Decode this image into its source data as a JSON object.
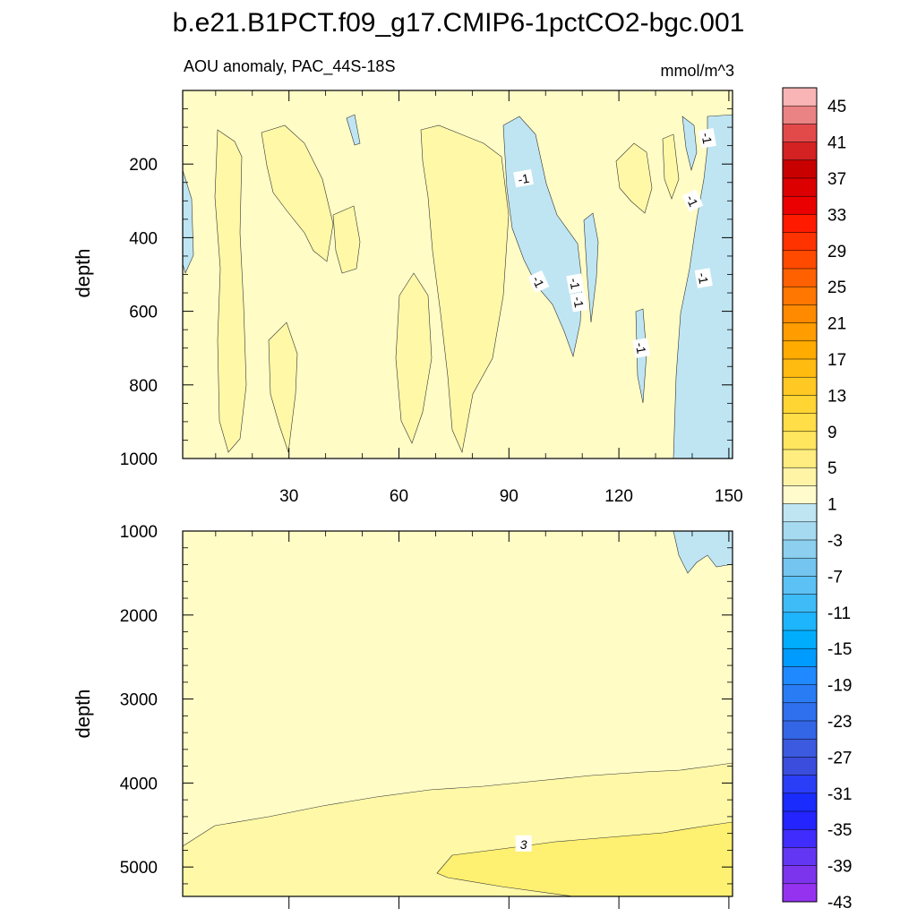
{
  "title": "b.e21.B1PCT.f09_g17.CMIP6-1pctCO2-bgc.001",
  "subtitle_left": "AOU anomaly, PAC_44S-18S",
  "subtitle_right": "mmol/m^3",
  "chart_data": [
    {
      "type": "heatmap",
      "panel": "upper",
      "ylabel": "depth",
      "xlim": [
        1,
        151
      ],
      "ylim": [
        1000,
        0
      ],
      "xticks": [
        30,
        60,
        90,
        120,
        150
      ],
      "xtick_labels": [
        "30",
        "60",
        "90",
        "120",
        "150"
      ],
      "yticks": [
        200,
        400,
        600,
        800,
        1000
      ],
      "ytick_labels": [
        "200",
        "400",
        "600",
        "800",
        "1000"
      ],
      "contour_labels": [
        "-1",
        "-1",
        "-1",
        "-1",
        "-1",
        "-1",
        "-1",
        "-1",
        "-1"
      ],
      "regions": [
        {
          "level": "1-3",
          "x_range": [
            14,
            18
          ],
          "depth_range": [
            100,
            950
          ]
        },
        {
          "level": "1-3",
          "x_range": [
            26,
            42
          ],
          "depth_range": [
            100,
            480
          ]
        },
        {
          "level": "1-3",
          "x_range": [
            60,
            66
          ],
          "depth_range": [
            550,
            1000
          ]
        },
        {
          "level": "1-3",
          "x_range": [
            69,
            92
          ],
          "depth_range": [
            80,
            1000
          ]
        },
        {
          "level": "-3 to -1",
          "x_range": [
            89,
            112
          ],
          "depth_range": [
            80,
            700
          ]
        },
        {
          "level": "-3 to -1",
          "x_range": [
            134,
            151
          ],
          "depth_range": [
            80,
            1000
          ]
        },
        {
          "level": "-3 to -1",
          "x_range": [
            1,
            4
          ],
          "depth_range": [
            230,
            430
          ]
        }
      ]
    },
    {
      "type": "heatmap",
      "panel": "lower",
      "ylabel": "depth",
      "xlim": [
        1,
        151
      ],
      "ylim": [
        5350,
        1000
      ],
      "xticks": [
        30,
        60,
        90,
        120,
        150
      ],
      "yticks": [
        1000,
        2000,
        3000,
        4000,
        5000
      ],
      "ytick_labels": [
        "1000",
        "2000",
        "3000",
        "4000",
        "5000"
      ],
      "contour_labels": [
        "3"
      ],
      "regions": [
        {
          "level": "-3 to -1",
          "x_range": [
            137,
            151
          ],
          "depth_range": [
            1000,
            1450
          ]
        },
        {
          "level": "1-3",
          "x_range": [
            1,
            151
          ],
          "depth_range": [
            3800,
            5350
          ]
        },
        {
          "level": "3-5",
          "x_range": [
            72,
            151
          ],
          "depth_range": [
            4500,
            5350
          ]
        }
      ]
    }
  ],
  "colorbar": {
    "labels": [
      "45",
      "41",
      "37",
      "33",
      "29",
      "25",
      "21",
      "17",
      "13",
      "9",
      "5",
      "1",
      "-3",
      "-7",
      "-11",
      "-15",
      "-19",
      "-23",
      "-27",
      "-31",
      "-35",
      "-39",
      "-43"
    ],
    "colors": [
      "#f9b5b5",
      "#ea8383",
      "#e24a4a",
      "#d42121",
      "#c80000",
      "#dc0000",
      "#ea0000",
      "#ff1a00",
      "#ff3300",
      "#ff4a00",
      "#ff6000",
      "#ff7600",
      "#ff8a00",
      "#ff9c00",
      "#ffab00",
      "#ffbb10",
      "#ffc822",
      "#ffd534",
      "#ffde48",
      "#ffe65e",
      "#ffed80",
      "#fff4a6",
      "#fffbcc",
      "#bfe5f3",
      "#a6daf0",
      "#8ccfee",
      "#74c5ef",
      "#5cc1f4",
      "#3ebcf8",
      "#1eb5fd",
      "#00adfd",
      "#009bfe",
      "#1f8aff",
      "#2a7cf5",
      "#2e70ee",
      "#3366e6",
      "#3b5ae0",
      "#3a4ddd",
      "#2a3df7",
      "#1a2bfd",
      "#2424ff",
      "#3f2cfd",
      "#6236f3",
      "#7c34ec",
      "#9532f0"
    ]
  }
}
